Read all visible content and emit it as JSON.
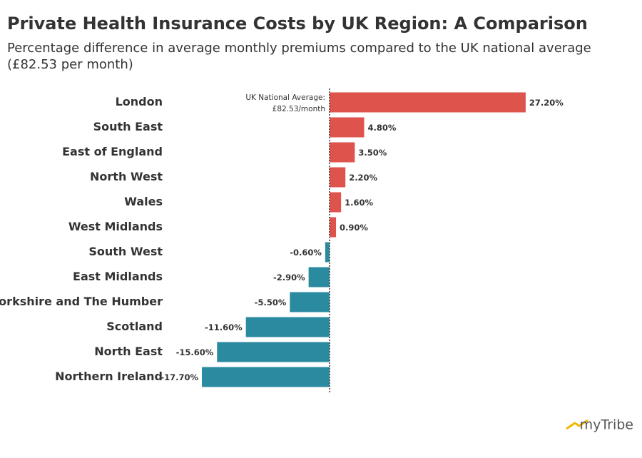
{
  "chart_data": {
    "type": "bar",
    "orientation": "horizontal",
    "title": "Private Health Insurance Costs by UK Region: A Comparison",
    "subtitle": [
      "Percentage difference in average monthly premiums compared to the UK national average",
      "(£82.53 per month)"
    ],
    "annotation": [
      "UK National Average:",
      "£82.53/month"
    ],
    "categories": [
      "London",
      "South East",
      "East of England",
      "North West",
      "Wales",
      "West Midlands",
      "South West",
      "East Midlands",
      "Yorkshire and The Humber",
      "Scotland",
      "North East",
      "Northern Ireland"
    ],
    "values": [
      27.2,
      4.8,
      3.5,
      2.2,
      1.6,
      0.9,
      -0.6,
      -2.9,
      -5.5,
      -11.6,
      -15.6,
      -17.7
    ],
    "value_labels": [
      "27.20%",
      "4.80%",
      "3.50%",
      "2.20%",
      "1.60%",
      "0.90%",
      "-0.60%",
      "-2.90%",
      "-5.50%",
      "-11.60%",
      "-15.60%",
      "-17.70%"
    ],
    "positive_color": "#de534b",
    "negative_color": "#2a8aa0",
    "xlim": [
      -18,
      28
    ]
  },
  "logo": "myTribe"
}
